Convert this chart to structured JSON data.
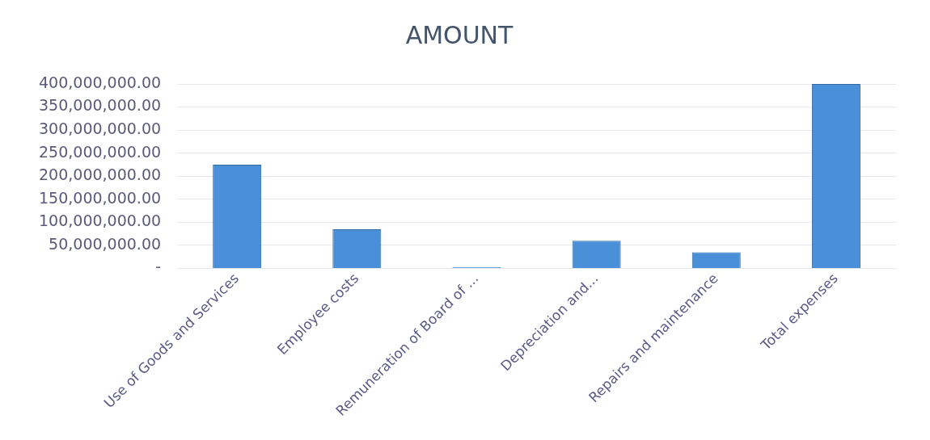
{
  "chart_data": {
    "type": "bar",
    "title": "AMOUNT",
    "categories": [
      "Use of Goods and Services",
      "Employee costs",
      "Remuneration of Board of ...",
      "Depreciation and...",
      "Repairs and maintenance",
      "Total expenses"
    ],
    "values": [
      225000000,
      85000000,
      3000000,
      60000000,
      35000000,
      400000000
    ],
    "color": "#4a90d9",
    "ylim": [
      0,
      400000000
    ],
    "yticks": [
      {
        "value": 0,
        "label": "-"
      },
      {
        "value": 50000000,
        "label": "50,000,000.00"
      },
      {
        "value": 100000000,
        "label": "100,000,000.00"
      },
      {
        "value": 150000000,
        "label": "150,000,000.00"
      },
      {
        "value": 200000000,
        "label": "200,000,000.00"
      },
      {
        "value": 250000000,
        "label": "250,000,000.00"
      },
      {
        "value": 300000000,
        "label": "300,000,000.00"
      },
      {
        "value": 350000000,
        "label": "350,000,000.00"
      },
      {
        "value": 400000000,
        "label": "400,000,000.00"
      }
    ],
    "grid": "y"
  }
}
